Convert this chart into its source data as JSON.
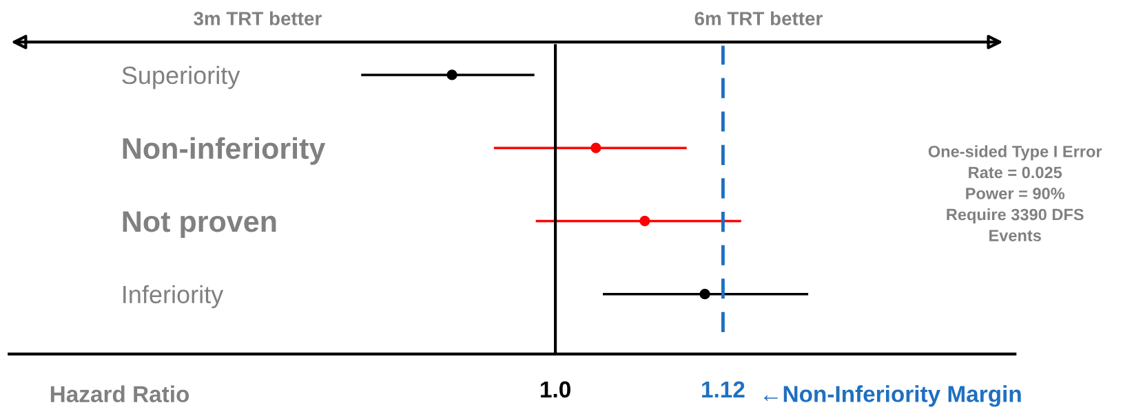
{
  "chart_data": {
    "type": "scatter",
    "orientation": "horizontal",
    "xlabel": "Hazard Ratio",
    "categories": [
      "Superiority",
      "Non-inferiority",
      "Not proven",
      "Inferiority"
    ],
    "values": [
      0.926,
      1.029,
      1.064,
      1.107
    ],
    "errors": [
      [
        0.861,
        0.985
      ],
      [
        0.956,
        1.094
      ],
      [
        0.986,
        1.133
      ],
      [
        1.034,
        1.181
      ]
    ],
    "colors": [
      "#000000",
      "#ff0000",
      "#ff0000",
      "#000000"
    ],
    "marker": "circle",
    "grid": false,
    "xlim": [
      0.609,
      1.329
    ],
    "xticks": [
      {
        "value": 1.0,
        "label": "1.0"
      },
      1.12
    ],
    "ref_lines": [
      {
        "axis": "x",
        "value": 1.0,
        "color": "#000000",
        "line_style": "solid"
      },
      {
        "axis": "x",
        "value": 1.12,
        "label": "←Non-Inferiority Margin",
        "color": "#1f6fc0",
        "line_style": "dashed"
      }
    ],
    "annotations": [
      "3m TRT better",
      "6m TRT better",
      "One-sided Type I Error\nRate = 0.025\nPower = 90%\nRequire 3390 DFS\nEvents"
    ]
  }
}
